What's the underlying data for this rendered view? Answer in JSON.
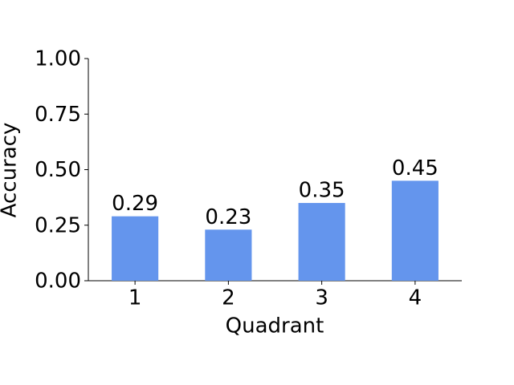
{
  "chart_data": {
    "type": "bar",
    "categories": [
      "1",
      "2",
      "3",
      "4"
    ],
    "values": [
      0.29,
      0.23,
      0.35,
      0.45
    ],
    "color": "#6495ed",
    "xlabel": "Quadrant",
    "ylabel": "Accuracy",
    "ylim": [
      0,
      1
    ],
    "yticks": [
      {
        "value": 0,
        "label": "0.00"
      },
      {
        "value": 0.25,
        "label": "0.25"
      },
      {
        "value": 0.5,
        "label": "0.50"
      },
      {
        "value": 0.75,
        "label": "0.75"
      },
      {
        "value": 1,
        "label": "1.00"
      }
    ],
    "grid": false
  }
}
